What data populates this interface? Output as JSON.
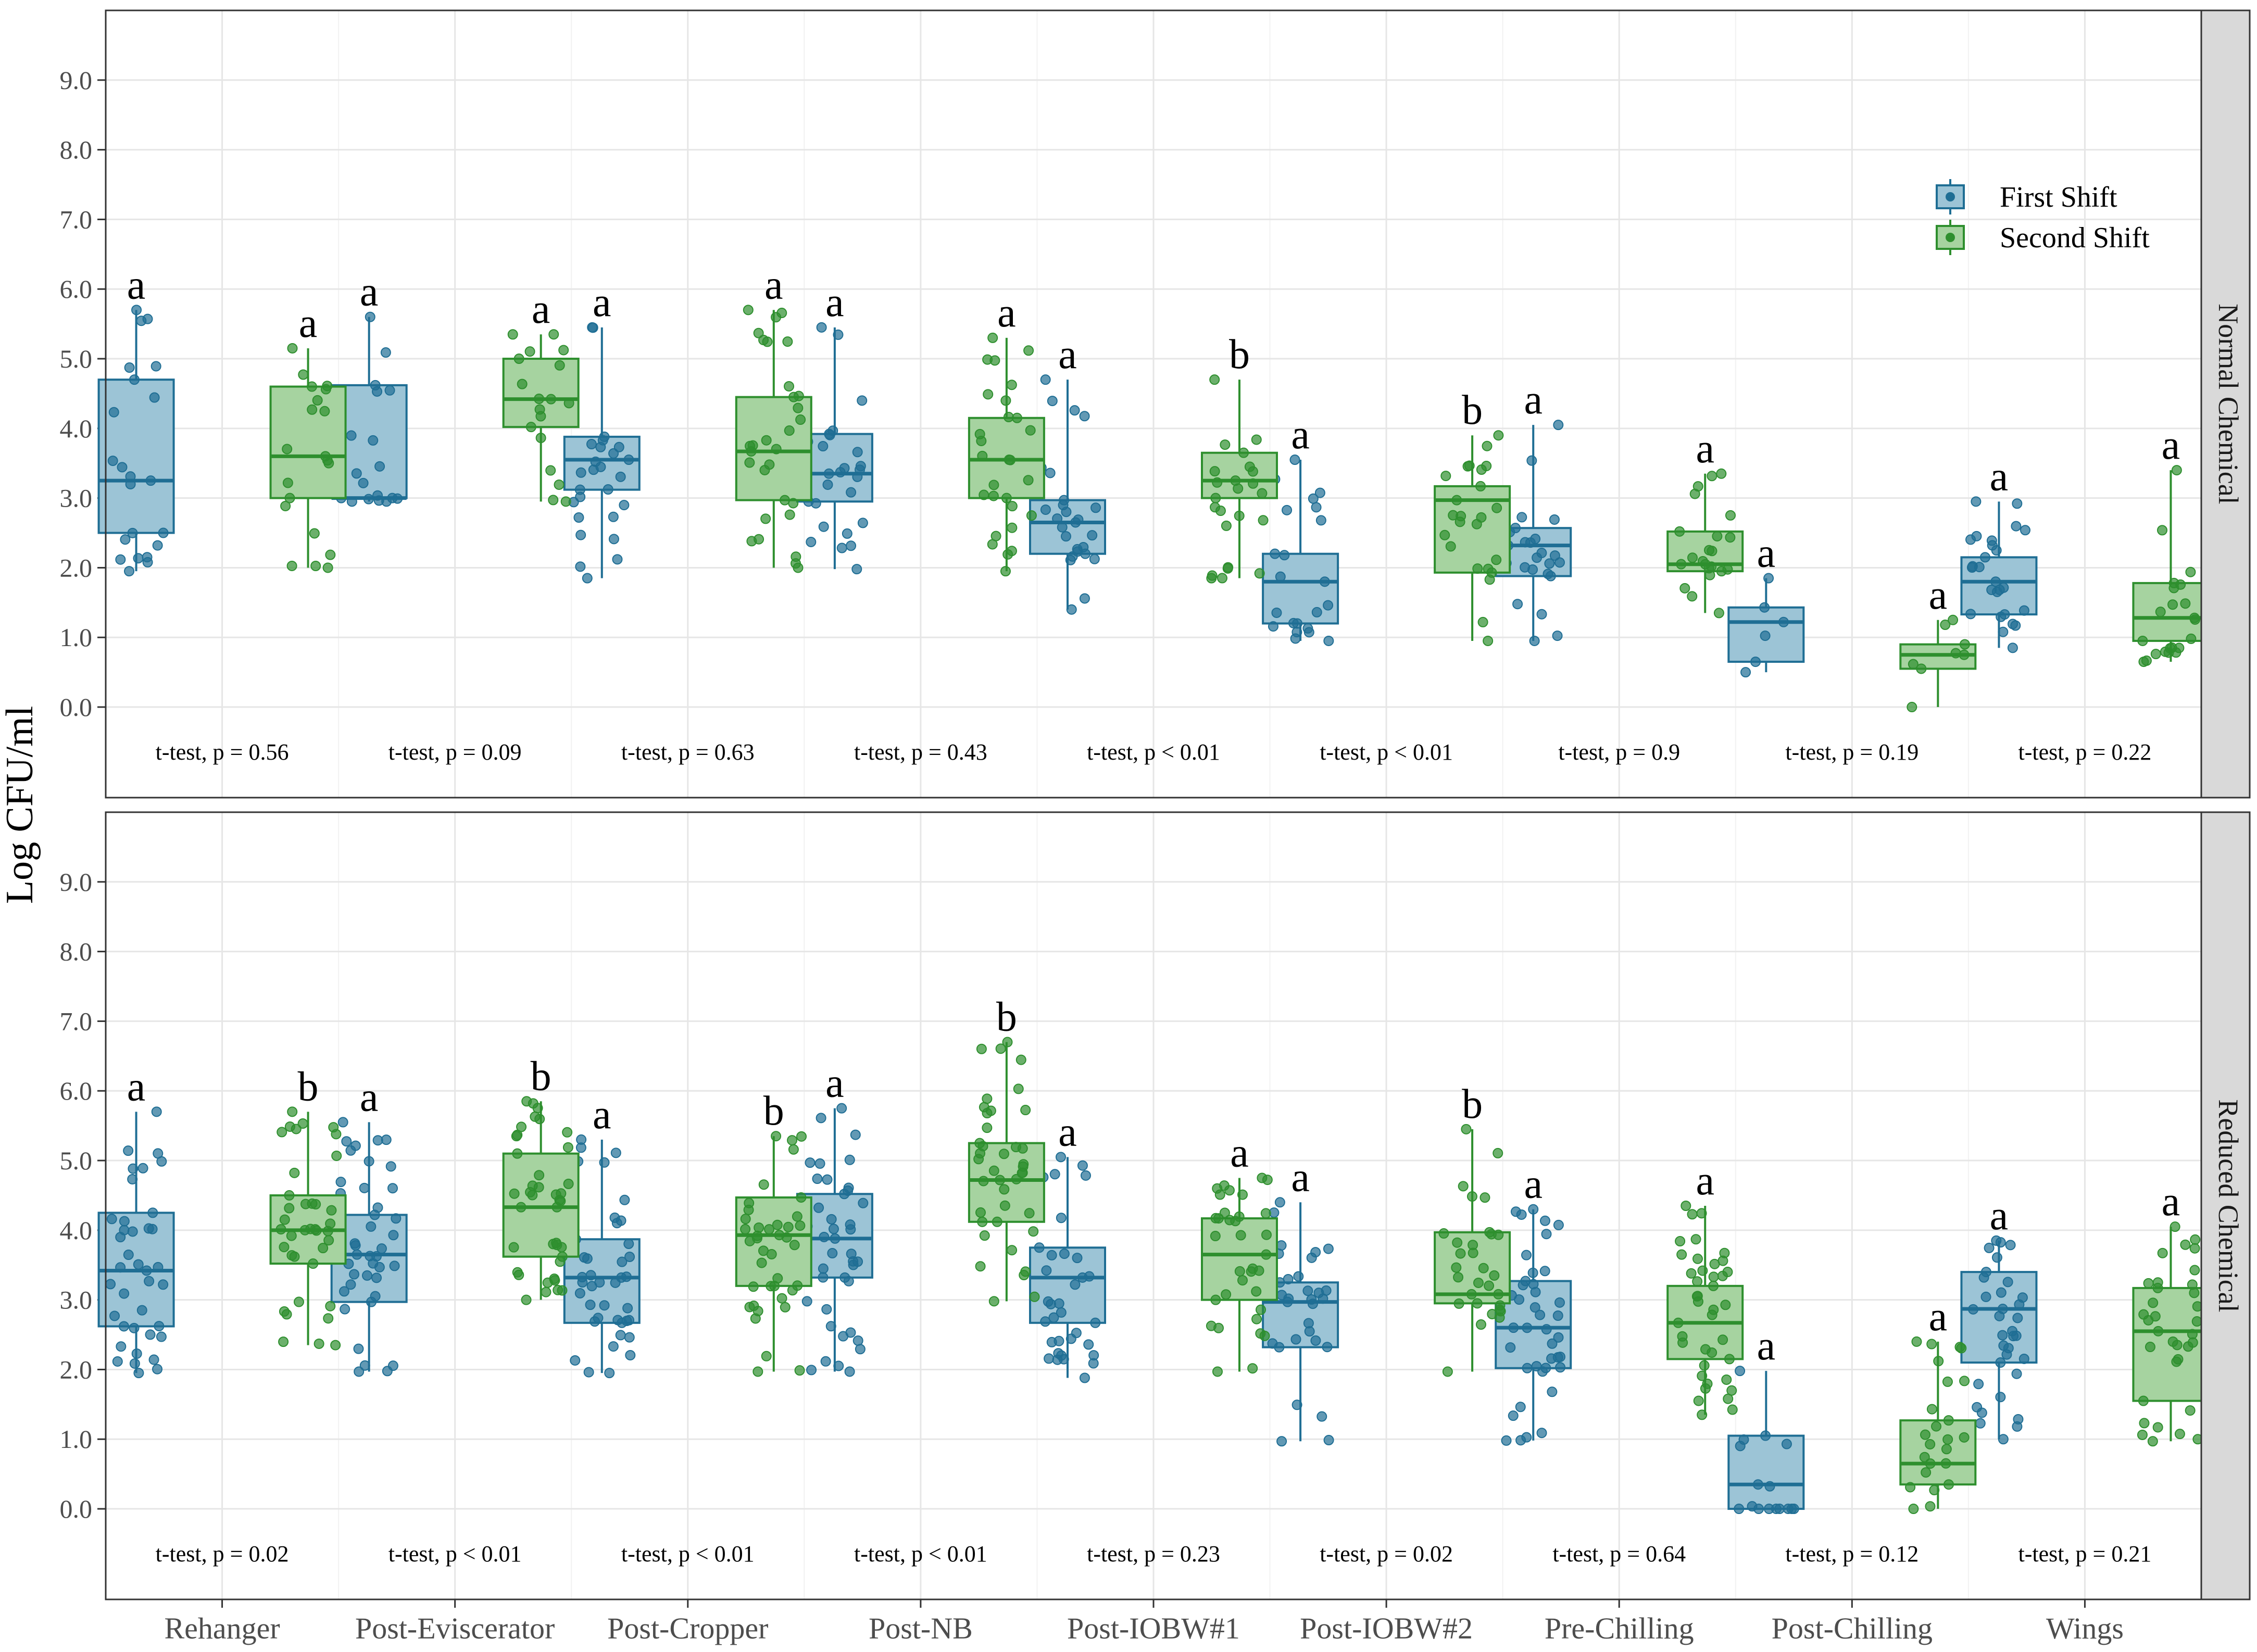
{
  "colors": {
    "first": "#1f6e94",
    "first_fill": "#9cc4d6",
    "second": "#2e8f2e",
    "second_fill": "#a6d3a0",
    "panel_border": "#333333",
    "grid": "#e6e6e6",
    "strip_bg": "#d9d9d9"
  },
  "chart_data": {
    "type": "boxplot",
    "ylabel": "Log CFU/ml",
    "ylim": [
      -1.3,
      10.0
    ],
    "yticks": [
      "0.0",
      "1.0",
      "2.0",
      "3.0",
      "4.0",
      "5.0",
      "6.0",
      "7.0",
      "8.0",
      "9.0"
    ],
    "categories": [
      "Rehanger",
      "Post-Eviscerator",
      "Post-Cropper",
      "Post-NB",
      "Post-IOBW#1",
      "Post-IOBW#2",
      "Pre-Chilling",
      "Post-Chilling",
      "Wings"
    ],
    "legend": {
      "position": "top-right",
      "entries": [
        "First Shift",
        "Second Shift"
      ]
    },
    "panels": [
      {
        "name": "Normal Chemical",
        "ttest": [
          "t-test, p = 0.56",
          "t-test, p = 0.09",
          "t-test, p = 0.63",
          "t-test, p = 0.43",
          "t-test, p < 0.01",
          "t-test, p < 0.01",
          "t-test, p = 0.9",
          "t-test, p = 0.19",
          "t-test, p = 0.22"
        ],
        "first": [
          {
            "q1": 2.5,
            "med": 3.25,
            "q3": 4.7,
            "lo": 1.95,
            "hi": 5.7,
            "letter": "a",
            "n": 22
          },
          {
            "q1": 3.0,
            "med": 3.0,
            "q3": 4.62,
            "lo": 2.95,
            "hi": 5.6,
            "letter": "a",
            "n": 18
          },
          {
            "q1": 3.12,
            "med": 3.55,
            "q3": 3.88,
            "lo": 1.85,
            "hi": 5.45,
            "letter": "a",
            "n": 26
          },
          {
            "q1": 2.95,
            "med": 3.35,
            "q3": 3.92,
            "lo": 1.98,
            "hi": 5.45,
            "letter": "a",
            "n": 26
          },
          {
            "q1": 2.2,
            "med": 2.65,
            "q3": 2.97,
            "lo": 1.4,
            "hi": 4.7,
            "letter": "a",
            "n": 26
          },
          {
            "q1": 1.2,
            "med": 1.8,
            "q3": 2.2,
            "lo": 0.95,
            "hi": 3.55,
            "letter": "a",
            "n": 22
          },
          {
            "q1": 1.88,
            "med": 2.32,
            "q3": 2.57,
            "lo": 0.95,
            "hi": 4.05,
            "letter": "a",
            "n": 24
          },
          {
            "q1": 0.65,
            "med": 1.22,
            "q3": 1.43,
            "lo": 0.5,
            "hi": 1.85,
            "letter": "a",
            "n": 6
          },
          {
            "q1": 1.33,
            "med": 1.8,
            "q3": 2.15,
            "lo": 0.85,
            "hi": 2.95,
            "letter": "a",
            "n": 26
          }
        ],
        "second": [
          {
            "q1": 3.0,
            "med": 3.6,
            "q3": 4.6,
            "lo": 2.0,
            "hi": 5.15,
            "letter": "a",
            "n": 20
          },
          {
            "q1": 4.02,
            "med": 4.42,
            "q3": 5.0,
            "lo": 2.95,
            "hi": 5.35,
            "letter": "a",
            "n": 18
          },
          {
            "q1": 2.97,
            "med": 3.67,
            "q3": 4.45,
            "lo": 2.0,
            "hi": 5.7,
            "letter": "a",
            "n": 30
          },
          {
            "q1": 3.0,
            "med": 3.55,
            "q3": 4.15,
            "lo": 1.95,
            "hi": 5.3,
            "letter": "a",
            "n": 28
          },
          {
            "q1": 3.0,
            "med": 3.25,
            "q3": 3.65,
            "lo": 1.85,
            "hi": 4.7,
            "letter": "b",
            "n": 24
          },
          {
            "q1": 1.93,
            "med": 2.97,
            "q3": 3.17,
            "lo": 0.95,
            "hi": 3.9,
            "letter": "b",
            "n": 24
          },
          {
            "q1": 1.95,
            "med": 2.05,
            "q3": 2.52,
            "lo": 1.35,
            "hi": 3.35,
            "letter": "a",
            "n": 22
          },
          {
            "q1": 0.55,
            "med": 0.75,
            "q3": 0.9,
            "lo": 0.0,
            "hi": 1.25,
            "letter": "a",
            "n": 8
          },
          {
            "q1": 0.95,
            "med": 1.28,
            "q3": 1.78,
            "lo": 0.65,
            "hi": 3.4,
            "letter": "a",
            "n": 22
          }
        ]
      },
      {
        "name": "Reduced Chemical",
        "ttest": [
          "t-test, p = 0.02",
          "t-test, p < 0.01",
          "t-test, p < 0.01",
          "t-test, p < 0.01",
          "t-test, p = 0.23",
          "t-test, p = 0.02",
          "t-test, p = 0.64",
          "t-test, p = 0.12",
          "t-test, p = 0.21"
        ],
        "first": [
          {
            "q1": 2.62,
            "med": 3.42,
            "q3": 4.25,
            "lo": 1.95,
            "hi": 5.7,
            "letter": "a",
            "n": 38
          },
          {
            "q1": 2.97,
            "med": 3.65,
            "q3": 4.22,
            "lo": 1.97,
            "hi": 5.55,
            "letter": "a",
            "n": 40
          },
          {
            "q1": 2.67,
            "med": 3.32,
            "q3": 3.87,
            "lo": 1.95,
            "hi": 5.3,
            "letter": "a",
            "n": 40
          },
          {
            "q1": 3.32,
            "med": 3.88,
            "q3": 4.52,
            "lo": 1.97,
            "hi": 5.75,
            "letter": "a",
            "n": 40
          },
          {
            "q1": 2.67,
            "med": 3.32,
            "q3": 3.75,
            "lo": 1.88,
            "hi": 5.05,
            "letter": "a",
            "n": 34
          },
          {
            "q1": 2.32,
            "med": 2.97,
            "q3": 3.25,
            "lo": 0.97,
            "hi": 4.4,
            "letter": "a",
            "n": 30
          },
          {
            "q1": 2.02,
            "med": 2.6,
            "q3": 3.27,
            "lo": 0.98,
            "hi": 4.3,
            "letter": "a",
            "n": 40
          },
          {
            "q1": 0.0,
            "med": 0.35,
            "q3": 1.05,
            "lo": 0.0,
            "hi": 1.98,
            "letter": "a",
            "n": 16
          },
          {
            "q1": 2.1,
            "med": 2.87,
            "q3": 3.4,
            "lo": 1.0,
            "hi": 3.85,
            "letter": "a",
            "n": 34
          }
        ],
        "second": [
          {
            "q1": 3.52,
            "med": 4.0,
            "q3": 4.5,
            "lo": 2.35,
            "hi": 5.7,
            "letter": "b",
            "n": 38
          },
          {
            "q1": 3.62,
            "med": 4.33,
            "q3": 5.1,
            "lo": 3.0,
            "hi": 5.85,
            "letter": "b",
            "n": 40
          },
          {
            "q1": 3.2,
            "med": 3.93,
            "q3": 4.47,
            "lo": 1.97,
            "hi": 5.35,
            "letter": "b",
            "n": 40
          },
          {
            "q1": 4.12,
            "med": 4.72,
            "q3": 5.25,
            "lo": 2.98,
            "hi": 6.7,
            "letter": "b",
            "n": 40
          },
          {
            "q1": 3.0,
            "med": 3.65,
            "q3": 4.17,
            "lo": 1.97,
            "hi": 4.75,
            "letter": "a",
            "n": 34
          },
          {
            "q1": 2.95,
            "med": 3.08,
            "q3": 3.97,
            "lo": 1.97,
            "hi": 5.45,
            "letter": "b",
            "n": 30
          },
          {
            "q1": 2.15,
            "med": 2.67,
            "q3": 3.2,
            "lo": 1.35,
            "hi": 4.35,
            "letter": "a",
            "n": 40
          },
          {
            "q1": 0.35,
            "med": 0.65,
            "q3": 1.27,
            "lo": 0.0,
            "hi": 2.4,
            "letter": "a",
            "n": 24
          },
          {
            "q1": 1.55,
            "med": 2.55,
            "q3": 3.17,
            "lo": 0.97,
            "hi": 4.05,
            "letter": "a",
            "n": 34
          }
        ]
      }
    ]
  }
}
